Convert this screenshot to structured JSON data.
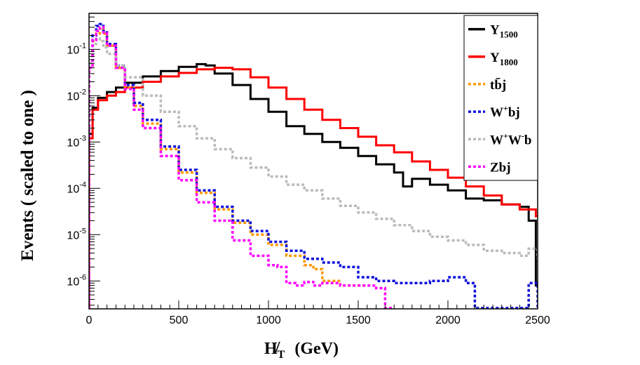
{
  "chart_data": {
    "type": "line",
    "subtype": "step-histogram",
    "title": "",
    "xlabel": "H̸_T  (GeV)",
    "xlabel_main": "H̸",
    "xlabel_sub": "T",
    "xlabel_unit": "(GeV)",
    "ylabel": "Events  ( scaled to one )",
    "xlim": [
      0,
      2500
    ],
    "ylim": [
      2.5e-07,
      0.6
    ],
    "yscale": "log",
    "x_ticks": [
      0,
      500,
      1000,
      1500,
      2000,
      2500
    ],
    "x_tick_labels": [
      "0",
      "500",
      "1000",
      "1500",
      "2000",
      "2500"
    ],
    "y_ticks": [
      1e-06,
      1e-05,
      0.0001,
      0.001,
      0.01,
      0.1
    ],
    "y_tick_labels": [
      {
        "base": "10",
        "exp": "-6"
      },
      {
        "base": "10",
        "exp": "-5"
      },
      {
        "base": "10",
        "exp": "-4"
      },
      {
        "base": "10",
        "exp": "-3"
      },
      {
        "base": "10",
        "exp": "-2"
      },
      {
        "base": "10",
        "exp": "-1"
      }
    ],
    "legend_position": "top-right",
    "series": [
      {
        "name": "Y_1500",
        "label_main": "Y",
        "label_sub": "1500",
        "label_sup": "",
        "color": "#000000",
        "style": "solid",
        "x": [
          0,
          20,
          50,
          100,
          150,
          200,
          300,
          400,
          500,
          600,
          650,
          700,
          800,
          900,
          1000,
          1100,
          1200,
          1300,
          1400,
          1500,
          1600,
          1700,
          1750,
          1800,
          1900,
          2000,
          2100,
          2200,
          2300,
          2400,
          2450,
          2490
        ],
        "values": [
          0.0015,
          0.0055,
          0.009,
          0.012,
          0.015,
          0.019,
          0.026,
          0.034,
          0.042,
          0.048,
          0.045,
          0.03,
          0.017,
          0.0085,
          0.0045,
          0.0022,
          0.0015,
          0.001,
          0.00075,
          0.0005,
          0.00033,
          0.00022,
          0.00011,
          0.00016,
          0.00012,
          9e-05,
          6e-05,
          5.5e-05,
          4.5e-05,
          4e-05,
          2e-05,
          8e-07
        ]
      },
      {
        "name": "Y_1800",
        "label_main": "Y",
        "label_sub": "1800",
        "label_sup": "",
        "color": "#ff0000",
        "style": "solid",
        "x": [
          0,
          20,
          50,
          100,
          150,
          200,
          300,
          400,
          500,
          600,
          700,
          800,
          900,
          1000,
          1100,
          1200,
          1300,
          1400,
          1500,
          1600,
          1700,
          1800,
          1900,
          2000,
          2100,
          2200,
          2300,
          2400,
          2490
        ],
        "values": [
          0.0012,
          0.005,
          0.008,
          0.01,
          0.012,
          0.015,
          0.02,
          0.026,
          0.031,
          0.037,
          0.04,
          0.037,
          0.025,
          0.015,
          0.0085,
          0.005,
          0.003,
          0.002,
          0.0013,
          0.00085,
          0.0006,
          0.00038,
          0.00025,
          0.00017,
          0.00011,
          7e-05,
          4.5e-05,
          3.5e-05,
          2.5e-05
        ]
      },
      {
        "name": "tb̄j",
        "label_main": "tb̄j",
        "label_sub": "",
        "label_sup": "",
        "color": "#ff9900",
        "style": "dashed",
        "x": [
          0,
          20,
          40,
          60,
          80,
          100,
          150,
          200,
          250,
          300,
          400,
          500,
          600,
          700,
          800,
          900,
          1000,
          1100,
          1200,
          1250,
          1300,
          1400,
          1500
        ],
        "values": [
          0.04,
          0.15,
          0.22,
          0.28,
          0.22,
          0.12,
          0.04,
          0.015,
          0.006,
          0.0025,
          0.0007,
          0.00022,
          8e-05,
          3.5e-05,
          1.8e-05,
          1e-05,
          6e-06,
          3.5e-06,
          2.2e-06,
          1.8e-06,
          1e-06,
          8e-07,
          8e-07
        ]
      },
      {
        "name": "W⁺bj",
        "label_main": "W",
        "label_sub": "",
        "label_sup": "+",
        "label_tail": "bj",
        "color": "#1010dd",
        "style": "dashed",
        "x": [
          0,
          20,
          40,
          60,
          80,
          100,
          150,
          200,
          250,
          300,
          400,
          500,
          600,
          700,
          800,
          900,
          1000,
          1100,
          1200,
          1300,
          1400,
          1500,
          1600,
          1700,
          1800,
          1900,
          2000,
          2100,
          2150,
          2450,
          2500
        ],
        "values": [
          0.05,
          0.2,
          0.32,
          0.35,
          0.25,
          0.13,
          0.045,
          0.017,
          0.007,
          0.003,
          0.0008,
          0.00025,
          9e-05,
          4e-05,
          2e-05,
          1.2e-05,
          7e-06,
          4.5e-06,
          3e-06,
          2.5e-06,
          2e-06,
          1.2e-06,
          1e-06,
          9e-07,
          9e-07,
          1e-06,
          1.2e-06,
          9e-07,
          2.6e-07,
          9e-07,
          2.6e-07
        ]
      },
      {
        "name": "W⁺W⁻b",
        "label_main": "W",
        "label_sub": "",
        "label_sup": "+",
        "label_tail": "W",
        "label_sup2": "-",
        "label_tail2": "b",
        "color": "#bbbbbb",
        "style": "dashed",
        "x": [
          0,
          20,
          40,
          60,
          80,
          100,
          150,
          200,
          300,
          400,
          500,
          600,
          700,
          800,
          900,
          1000,
          1100,
          1200,
          1300,
          1400,
          1500,
          1600,
          1700,
          1800,
          1900,
          2000,
          2100,
          2200,
          2300,
          2400,
          2450,
          2500
        ],
        "values": [
          0.05,
          0.13,
          0.17,
          0.15,
          0.11,
          0.08,
          0.045,
          0.025,
          0.01,
          0.0045,
          0.0022,
          0.0012,
          0.0007,
          0.00045,
          0.00028,
          0.00018,
          0.00012,
          9e-05,
          6e-05,
          4.2e-05,
          3e-05,
          2.2e-05,
          1.6e-05,
          1.2e-05,
          9e-06,
          7.5e-06,
          6e-06,
          4.5e-06,
          4e-06,
          3.5e-06,
          5e-06,
          3e-06
        ]
      },
      {
        "name": "Zbj",
        "label_main": "Zbj",
        "label_sub": "",
        "label_sup": "",
        "color": "#ff00ff",
        "style": "dashed",
        "x": [
          0,
          20,
          40,
          60,
          80,
          100,
          150,
          200,
          250,
          300,
          400,
          500,
          600,
          700,
          800,
          900,
          1000,
          1050,
          1100,
          1150,
          1200,
          1250,
          1300,
          1400,
          1500,
          1600,
          1650
        ],
        "values": [
          0.04,
          0.16,
          0.25,
          0.3,
          0.23,
          0.12,
          0.04,
          0.014,
          0.005,
          0.002,
          0.0005,
          0.00015,
          5e-05,
          2e-05,
          7.5e-06,
          3.5e-06,
          2.2e-06,
          2e-06,
          9e-07,
          8e-07,
          9.5e-07,
          8e-07,
          9e-07,
          8e-07,
          8e-07,
          7e-07,
          2.6e-07
        ]
      }
    ]
  }
}
